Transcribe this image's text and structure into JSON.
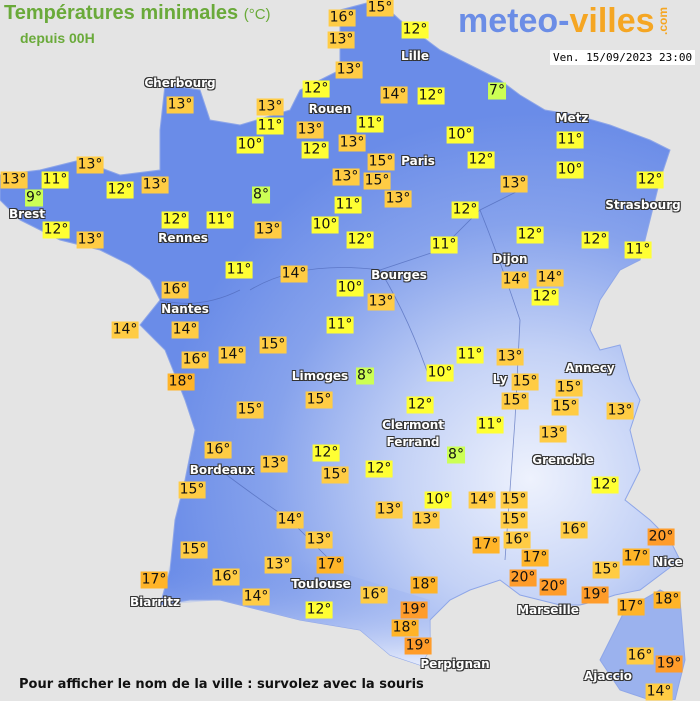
{
  "header": {
    "title": "Températures minimales",
    "unit": "(°C)",
    "subtitle": "depuis 00H",
    "logo_part1": "meteo-",
    "logo_part2": "villes",
    "logo_suffix": ".com",
    "datetime": "Ven. 15/09/2023 23:00"
  },
  "footer": {
    "hint": "Pour afficher le nom de la ville : survolez avec la souris"
  },
  "legend_colors": {
    "7-9": "#ccff55",
    "10-12": "#ffff33",
    "13-16": "#ffcc44",
    "17-18": "#ffb428",
    "19-20": "#ff9c2a"
  },
  "map_colors": {
    "lowland": "#6a8ce8",
    "highland": "#e8eefc",
    "sea": "#e4e4e4"
  },
  "temperatures": [
    "16°",
    "15°",
    "12°",
    "13°",
    "13°",
    "12°",
    "14°",
    "12°",
    "7°",
    "13°",
    "13°",
    "11°",
    "13°",
    "11°",
    "10°",
    "12°",
    "13°",
    "15°",
    "10°",
    "12°",
    "11°",
    "10°",
    "13°",
    "15°",
    "13°",
    "13°",
    "12°",
    "13°",
    "11°",
    "9°",
    "13°",
    "12°",
    "13°",
    "8°",
    "11°",
    "12°",
    "12°",
    "13°",
    "12°",
    "11°",
    "13°",
    "10°",
    "12°",
    "11°",
    "12°",
    "12°",
    "11°",
    "11°",
    "14°",
    "10°",
    "13°",
    "14°",
    "14°",
    "12°",
    "16°",
    "11°",
    "14°",
    "14°",
    "16°",
    "14°",
    "15°",
    "18°",
    "11°",
    "13°",
    "8°",
    "10°",
    "15°",
    "15°",
    "15°",
    "15°",
    "13°",
    "15°",
    "15°",
    "12°",
    "11°",
    "13°",
    "16°",
    "13°",
    "12°",
    "8°",
    "15°",
    "12°",
    "12°",
    "15°",
    "10°",
    "14°",
    "15°",
    "13°",
    "13°",
    "15°",
    "16°",
    "14°",
    "13°",
    "20°",
    "17°",
    "16°",
    "17°",
    "15°",
    "13°",
    "17°",
    "17°",
    "15°",
    "17°",
    "16°",
    "14°",
    "20°",
    "18°",
    "16°",
    "20°",
    "19°",
    "18°",
    "17°",
    "12°",
    "19°",
    "18°",
    "19°",
    "16°",
    "19°",
    "14°"
  ],
  "cities": [
    "Lille",
    "Cherbourg",
    "Rouen",
    "Paris",
    "Metz",
    "Brest",
    "Rennes",
    "Strasbourg",
    "Dijon",
    "Bourges",
    "Nantes",
    "Limoges",
    "Annecy",
    "Ly",
    "Clermont",
    "Ferrand",
    "Grenoble",
    "Bordeaux",
    "Toulouse",
    "Nice",
    "Biarritz",
    "Marseille",
    "Perpignan",
    "Ajaccio"
  ]
}
